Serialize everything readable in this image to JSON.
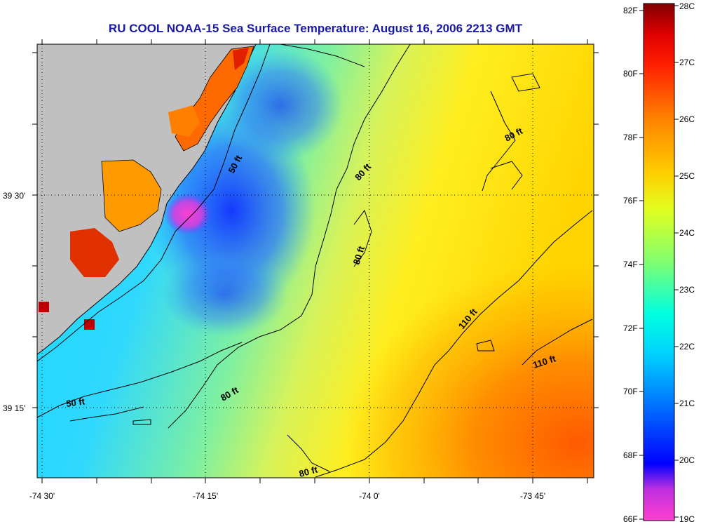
{
  "title": "RU COOL  NOAA-15  Sea Surface Temperature:  August 16, 2006 2213 GMT",
  "map": {
    "lat_ticks": [
      {
        "label": "39 30'"
      },
      {
        "label": "39 15'"
      }
    ],
    "lon_ticks": [
      {
        "label": "-74 30'"
      },
      {
        "label": "-74 15'"
      },
      {
        "label": "-74 0'"
      },
      {
        "label": "-73 45'"
      }
    ],
    "contour_labels": [
      "50 ft",
      "80 ft",
      "80 ft",
      "80 ft",
      "110 ft",
      "110 ft",
      "50 ft",
      "80 ft",
      "80 ft"
    ],
    "colors": {
      "land": "#c0c0c0",
      "title": "#1a1aa6"
    }
  },
  "colorbar": {
    "fahrenheit_labels": [
      "82F",
      "80F",
      "78F",
      "76F",
      "74F",
      "72F",
      "70F",
      "68F",
      "66F"
    ],
    "celsius_labels": [
      "28C",
      "27C",
      "26C",
      "25C",
      "24C",
      "23C",
      "22C",
      "21C",
      "20C",
      "19C"
    ],
    "stops": [
      "#ff40d0",
      "#a030e0",
      "#0000ff",
      "#0090ff",
      "#00ffff",
      "#60ff90",
      "#ffff00",
      "#ffa000",
      "#ff5000",
      "#ff0000",
      "#800000"
    ]
  }
}
